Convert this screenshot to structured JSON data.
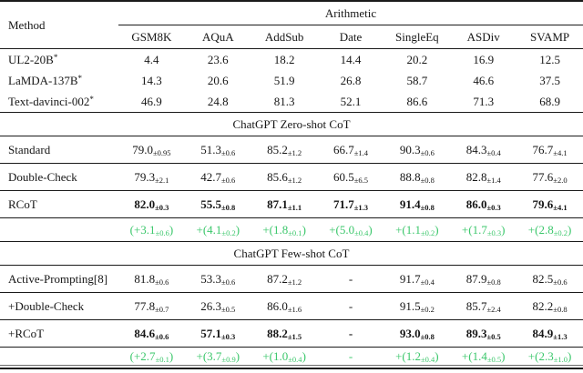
{
  "colors": {
    "improvement_green": "#3bc76b",
    "rule_black": "#1a1a1a"
  },
  "table": {
    "corner_header": "Method",
    "group_header": "Arithmetic",
    "columns": [
      "GSM8K",
      "AQuA",
      "AddSub",
      "Date",
      "SingleEq",
      "ASDiv",
      "SVAMP"
    ],
    "sections": [
      {
        "title": "",
        "rows": [
          {
            "method": "UL2-20B",
            "method_sup": "*",
            "cells": [
              {
                "main": "4.4"
              },
              {
                "main": "23.6"
              },
              {
                "main": "18.2"
              },
              {
                "main": "14.4"
              },
              {
                "main": "20.2"
              },
              {
                "main": "16.9"
              },
              {
                "main": "12.5"
              }
            ]
          },
          {
            "method": "LaMDA-137B",
            "method_sup": "*",
            "cells": [
              {
                "main": "14.3"
              },
              {
                "main": "20.6"
              },
              {
                "main": "51.9"
              },
              {
                "main": "26.8"
              },
              {
                "main": "58.7"
              },
              {
                "main": "46.6"
              },
              {
                "main": "37.5"
              }
            ]
          },
          {
            "method": "Text-davinci-002",
            "method_sup": "*",
            "cells": [
              {
                "main": "46.9"
              },
              {
                "main": "24.8"
              },
              {
                "main": "81.3"
              },
              {
                "main": "52.1"
              },
              {
                "main": "86.6"
              },
              {
                "main": "71.3"
              },
              {
                "main": "68.9"
              }
            ]
          }
        ]
      },
      {
        "title": "ChatGPT Zero-shot CoT",
        "rows": [
          {
            "method": "Standard",
            "cells": [
              {
                "main": "79.0",
                "sub": "±0.95"
              },
              {
                "main": "51.3",
                "sub": "±0.6"
              },
              {
                "main": "85.2",
                "sub": "±1.2"
              },
              {
                "main": "66.7",
                "sub": "±1.4"
              },
              {
                "main": "90.3",
                "sub": "±0.6"
              },
              {
                "main": "84.3",
                "sub": "±0.4"
              },
              {
                "main": "76.7",
                "sub": "±4.1"
              }
            ]
          },
          {
            "method": "Double-Check",
            "cells": [
              {
                "main": "79.3",
                "sub": "±2.1"
              },
              {
                "main": "42.7",
                "sub": "±0.6"
              },
              {
                "main": "85.6",
                "sub": "±1.2"
              },
              {
                "main": "60.5",
                "sub": "±6.5"
              },
              {
                "main": "88.8",
                "sub": "±0.8"
              },
              {
                "main": "82.8",
                "sub": "±1.4"
              },
              {
                "main": "77.6",
                "sub": "±2.0"
              }
            ]
          },
          {
            "method": "RCoT",
            "bold": true,
            "cells": [
              {
                "main": "82.0",
                "sub": "±0.3"
              },
              {
                "main": "55.5",
                "sub": "±0.8"
              },
              {
                "main": "87.1",
                "sub": "±1.1"
              },
              {
                "main": "71.7",
                "sub": "±1.3"
              },
              {
                "main": "91.4",
                "sub": "±0.8"
              },
              {
                "main": "86.0",
                "sub": "±0.3"
              },
              {
                "main": "79.6",
                "sub": "±4.1"
              }
            ]
          },
          {
            "method": "",
            "green": true,
            "cells": [
              {
                "main": "(+3.1",
                "sub": "±0.6",
                "tail": ")"
              },
              {
                "main": "+(4.1",
                "sub": "±0.2",
                "tail": ")"
              },
              {
                "main": "+(1.8",
                "sub": "±0.1",
                "tail": ")"
              },
              {
                "main": "+(5.0",
                "sub": "±0.4",
                "tail": ")"
              },
              {
                "main": "+(1.1",
                "sub": "±0.2",
                "tail": ")"
              },
              {
                "main": "+(1.7",
                "sub": "±0.3",
                "tail": ")"
              },
              {
                "main": "+(2.8",
                "sub": "±0.2",
                "tail": ")"
              }
            ]
          }
        ]
      },
      {
        "title": "ChatGPT Few-shot CoT",
        "rows": [
          {
            "method": "Active-Prompting[8]",
            "cells": [
              {
                "main": "81.8",
                "sub": "±0.6"
              },
              {
                "main": "53.3",
                "sub": "±0.6"
              },
              {
                "main": "87.2",
                "sub": "±1.2"
              },
              {
                "main": "-"
              },
              {
                "main": "91.7",
                "sub": "±0.4"
              },
              {
                "main": "87.9",
                "sub": "±0.8"
              },
              {
                "main": "82.5",
                "sub": "±0.6"
              }
            ]
          },
          {
            "method": "+Double-Check",
            "cells": [
              {
                "main": "77.8",
                "sub": "±0.7"
              },
              {
                "main": "26.3",
                "sub": "±0.5"
              },
              {
                "main": "86.0",
                "sub": "±1.6"
              },
              {
                "main": "-"
              },
              {
                "main": "91.5",
                "sub": "±0.2"
              },
              {
                "main": "85.7",
                "sub": "±2.4"
              },
              {
                "main": "82.2",
                "sub": "±0.8"
              }
            ]
          },
          {
            "method": "+RCoT",
            "bold": true,
            "cells": [
              {
                "main": "84.6",
                "sub": "±0.6"
              },
              {
                "main": "57.1",
                "sub": "±0.3"
              },
              {
                "main": "88.2",
                "sub": "±1.5"
              },
              {
                "main": "-"
              },
              {
                "main": "93.0",
                "sub": "±0.8"
              },
              {
                "main": "89.3",
                "sub": "±0.5"
              },
              {
                "main": "84.9",
                "sub": "±1.3"
              }
            ]
          },
          {
            "method": "",
            "green": true,
            "cells": [
              {
                "main": "(+2.7",
                "sub": "±0.1",
                "tail": ")"
              },
              {
                "main": "+(3.7",
                "sub": "±0.9",
                "tail": ")"
              },
              {
                "main": "+(1.0",
                "sub": "±0.4",
                "tail": ")"
              },
              {
                "main": "-"
              },
              {
                "main": "+(1.2",
                "sub": "±0.4",
                "tail": ")"
              },
              {
                "main": "+(1.4",
                "sub": "±0.5",
                "tail": ")"
              },
              {
                "main": "+(2.3",
                "sub": "±1.0",
                "tail": ")"
              }
            ]
          }
        ]
      }
    ]
  }
}
